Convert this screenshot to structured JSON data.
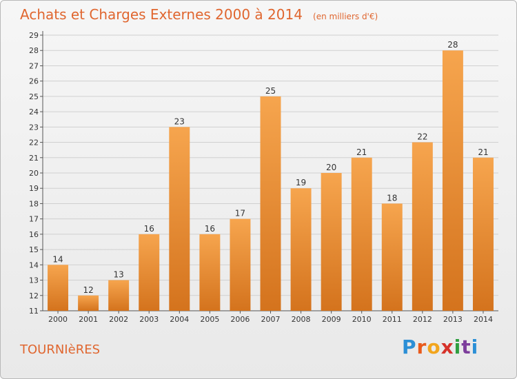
{
  "header": {
    "title": "Achats et Charges Externes 2000 à 2014",
    "subtitle": "(en milliers d'€)"
  },
  "footer": {
    "commune": "TOURNIèRES",
    "logo_text": "Proxiti"
  },
  "colors": {
    "title": "#e0662f",
    "bar_light": "#f6a54e",
    "bar_dark": "#d4731d",
    "grid": "#d0d0d0",
    "axis": "#555555"
  },
  "chart_data": {
    "type": "bar",
    "title": "Achats et Charges Externes 2000 à 2014",
    "subtitle": "(en milliers d'€)",
    "xlabel": "",
    "ylabel": "",
    "categories": [
      "2000",
      "2001",
      "2002",
      "2003",
      "2004",
      "2005",
      "2006",
      "2007",
      "2008",
      "2009",
      "2010",
      "2011",
      "2012",
      "2013",
      "2014"
    ],
    "values": [
      14,
      12,
      13,
      16,
      23,
      16,
      17,
      25,
      19,
      20,
      21,
      18,
      22,
      28,
      21
    ],
    "ylim": [
      11,
      29
    ],
    "yticks": [
      11,
      12,
      13,
      14,
      15,
      16,
      17,
      18,
      19,
      20,
      21,
      22,
      23,
      24,
      25,
      26,
      27,
      28,
      29
    ],
    "grid": true,
    "legend": "none"
  }
}
